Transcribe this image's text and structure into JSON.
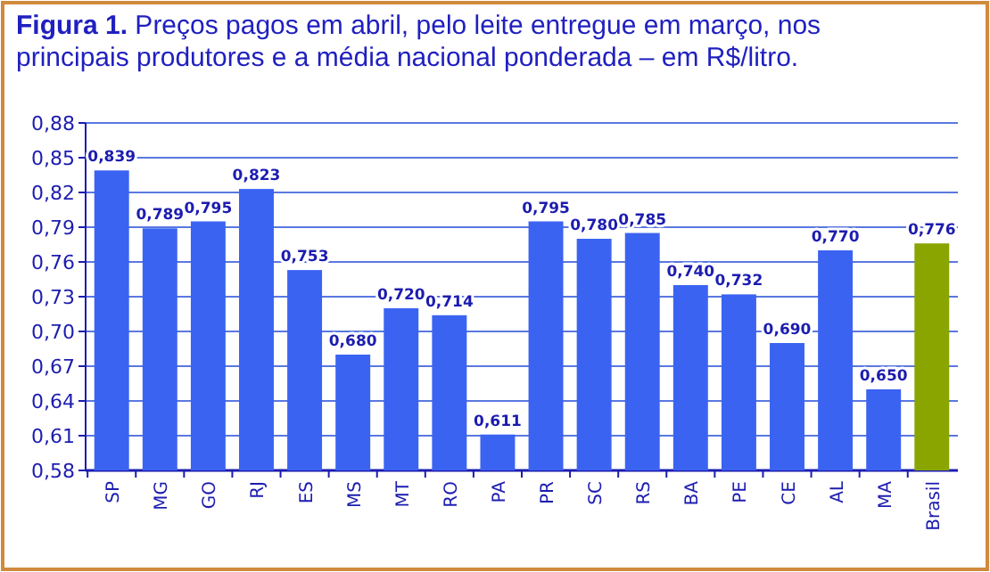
{
  "chart_data": {
    "type": "bar",
    "title": "Figura 1. Preços pagos em abril, pelo leite entregue em março, nos principais produtores e a média nacional ponderada – em R$/litro.",
    "categories": [
      "SP",
      "MG",
      "GO",
      "RJ",
      "ES",
      "MS",
      "MT",
      "RO",
      "PA",
      "PR",
      "SC",
      "RS",
      "BA",
      "PE",
      "CE",
      "AL",
      "MA",
      "Brasil"
    ],
    "values": [
      0.839,
      0.789,
      0.795,
      0.823,
      0.753,
      0.68,
      0.72,
      0.714,
      0.611,
      0.795,
      0.78,
      0.785,
      0.74,
      0.732,
      0.69,
      0.77,
      0.65,
      0.776
    ],
    "value_labels": [
      "0,839",
      "0,789",
      "0,795",
      "0,823",
      "0,753",
      "0,680",
      "0,720",
      "0,714",
      "0,611",
      "0,795",
      "0,780",
      "0,785",
      "0,740",
      "0,732",
      "0,690",
      "0,770",
      "0,650",
      "0,776"
    ],
    "colors": [
      "#3b63f2",
      "#3b63f2",
      "#3b63f2",
      "#3b63f2",
      "#3b63f2",
      "#3b63f2",
      "#3b63f2",
      "#3b63f2",
      "#3b63f2",
      "#3b63f2",
      "#3b63f2",
      "#3b63f2",
      "#3b63f2",
      "#3b63f2",
      "#3b63f2",
      "#3b63f2",
      "#3b63f2",
      "#8aa400"
    ],
    "ylim": [
      0.58,
      0.88
    ],
    "yticks": [
      {
        "value": 0.58,
        "label": "0,58"
      },
      {
        "value": 0.61,
        "label": "0,61"
      },
      {
        "value": 0.64,
        "label": "0,64"
      },
      {
        "value": 0.67,
        "label": "0,67"
      },
      {
        "value": 0.7,
        "label": "0,70"
      },
      {
        "value": 0.73,
        "label": "0,73"
      },
      {
        "value": 0.76,
        "label": "0,76"
      },
      {
        "value": 0.79,
        "label": "0,79"
      },
      {
        "value": 0.82,
        "label": "0,82"
      },
      {
        "value": 0.85,
        "label": "0,85"
      },
      {
        "value": 0.88,
        "label": "0,88"
      }
    ],
    "grid": "y"
  }
}
